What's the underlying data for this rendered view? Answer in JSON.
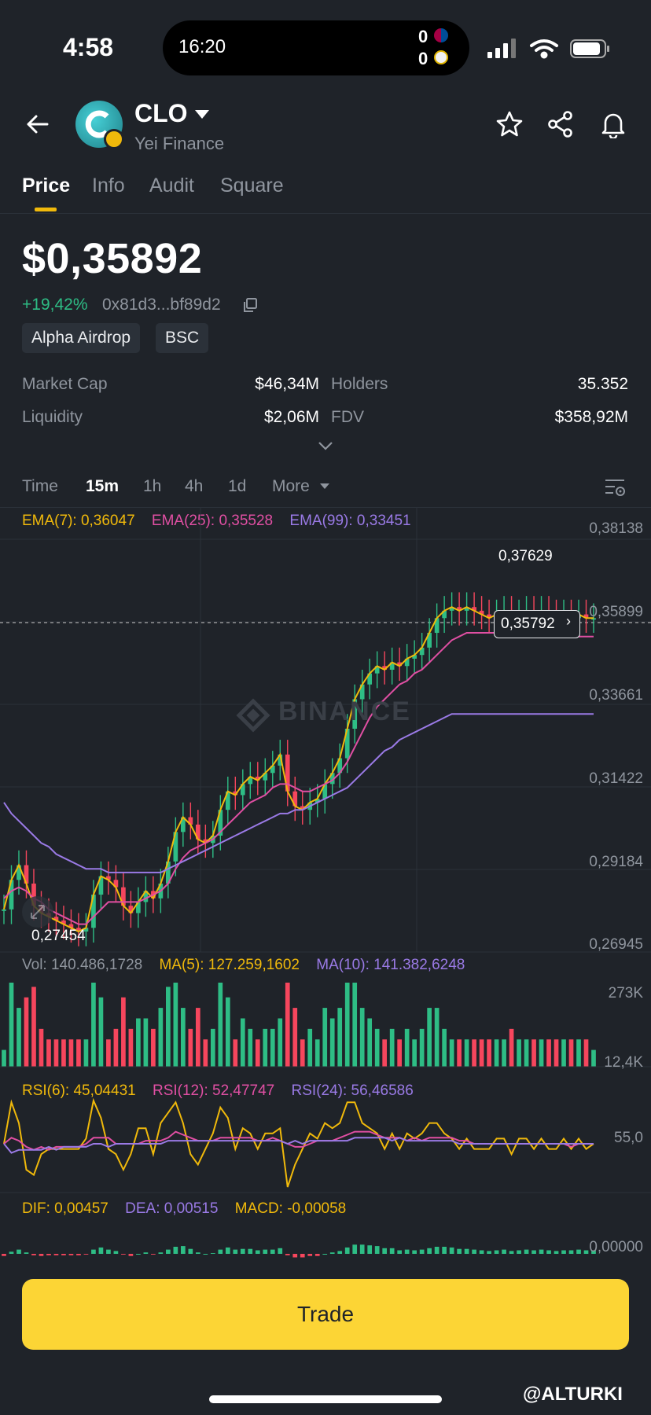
{
  "status_bar": {
    "time": "4:58",
    "island_time": "16:20",
    "score_home": "0",
    "score_away": "0"
  },
  "header": {
    "symbol": "CLO",
    "name": "Yei Finance"
  },
  "tabs": [
    "Price",
    "Info",
    "Audit",
    "Square"
  ],
  "price": {
    "value": "$0,35892",
    "change": "+19,42%",
    "address": "0x81d3...bf89d2",
    "tags": [
      "Alpha Airdrop",
      "BSC"
    ]
  },
  "stats": {
    "market_cap_label": "Market Cap",
    "market_cap": "$46,34M",
    "holders_label": "Holders",
    "holders": "35.352",
    "liquidity_label": "Liquidity",
    "liquidity": "$2,06M",
    "fdv_label": "FDV",
    "fdv": "$358,92M"
  },
  "intervals": [
    "Time",
    "15m",
    "1h",
    "4h",
    "1d",
    "More"
  ],
  "indicators": {
    "ema7": "EMA(7): 0,36047",
    "ema25": "EMA(25): 0,35528",
    "ema99": "EMA(99): 0,33451",
    "vol": "Vol: 140.486,1728",
    "ma5": "MA(5): 127.259,1602",
    "ma10": "MA(10): 141.382,6248",
    "rsi6": "RSI(6): 45,04431",
    "rsi12": "RSI(12): 52,47747",
    "rsi24": "RSI(24): 56,46586",
    "dif": "DIF: 0,00457",
    "dea": "DEA: 0,00515",
    "macd": "MACD: -0,00058"
  },
  "price_axis": [
    "0,38138",
    "0,35899",
    "0,33661",
    "0,31422",
    "0,29184",
    "0,26945"
  ],
  "volume_axis": [
    "273K",
    "12,4K"
  ],
  "rsi_axis": "55,0",
  "macd_axis": "0,00000",
  "chart_labels": {
    "high": "0,37629",
    "low": "0,27454",
    "current": "0,35792",
    "watermark": "BINANCE"
  },
  "chart_data": {
    "type": "line",
    "x": [
      0,
      1,
      2,
      3,
      4,
      5,
      6,
      7,
      8,
      9,
      10,
      11,
      12,
      13,
      14,
      15,
      16,
      17,
      18,
      19,
      20,
      21,
      22,
      23,
      24,
      25,
      26,
      27,
      28,
      29,
      30,
      31,
      32,
      33,
      34,
      35,
      36,
      37,
      38,
      39,
      40,
      41,
      42,
      43,
      44,
      45,
      46,
      47,
      48,
      49,
      50,
      51,
      52,
      53,
      54,
      55,
      56,
      57,
      58,
      59,
      60,
      61,
      62,
      63,
      64,
      65,
      66,
      67,
      68,
      69,
      70,
      71,
      72,
      73,
      74,
      75,
      76,
      77,
      78,
      79
    ],
    "series": [
      {
        "values": [
          0.281,
          0.289,
          0.293,
          0.288,
          0.282,
          0.28,
          0.279,
          0.278,
          0.277,
          0.276,
          0.275,
          0.276,
          0.285,
          0.29,
          0.289,
          0.287,
          0.282,
          0.28,
          0.283,
          0.286,
          0.284,
          0.288,
          0.294,
          0.302,
          0.306,
          0.304,
          0.3,
          0.299,
          0.301,
          0.308,
          0.313,
          0.312,
          0.315,
          0.317,
          0.316,
          0.318,
          0.32,
          0.323,
          0.313,
          0.309,
          0.308,
          0.31,
          0.311,
          0.315,
          0.318,
          0.322,
          0.33,
          0.338,
          0.342,
          0.345,
          0.347,
          0.346,
          0.348,
          0.347,
          0.349,
          0.35,
          0.352,
          0.356,
          0.36,
          0.362,
          0.363,
          0.362,
          0.363,
          0.362,
          0.361,
          0.36,
          0.361,
          0.362,
          0.36,
          0.361,
          0.362,
          0.361,
          0.362,
          0.361,
          0.36,
          0.361,
          0.36,
          0.361,
          0.36,
          0.36
        ]
      },
      {
        "values": [
          0.284,
          0.286,
          0.287,
          0.286,
          0.284,
          0.283,
          0.281,
          0.28,
          0.279,
          0.278,
          0.277,
          0.277,
          0.279,
          0.281,
          0.283,
          0.283,
          0.283,
          0.283,
          0.283,
          0.284,
          0.285,
          0.286,
          0.288,
          0.292,
          0.295,
          0.297,
          0.298,
          0.299,
          0.3,
          0.302,
          0.304,
          0.306,
          0.308,
          0.31,
          0.311,
          0.312,
          0.314,
          0.315,
          0.315,
          0.314,
          0.313,
          0.313,
          0.314,
          0.315,
          0.316,
          0.318,
          0.321,
          0.325,
          0.329,
          0.333,
          0.336,
          0.338,
          0.34,
          0.342,
          0.343,
          0.345,
          0.346,
          0.348,
          0.35,
          0.352,
          0.354,
          0.355,
          0.356,
          0.356,
          0.356,
          0.356,
          0.356,
          0.356,
          0.356,
          0.356,
          0.356,
          0.356,
          0.356,
          0.356,
          0.356,
          0.356,
          0.355,
          0.355,
          0.355,
          0.355
        ]
      },
      {
        "values": [
          0.31,
          0.307,
          0.305,
          0.303,
          0.301,
          0.299,
          0.298,
          0.296,
          0.295,
          0.294,
          0.293,
          0.292,
          0.292,
          0.292,
          0.291,
          0.291,
          0.291,
          0.291,
          0.291,
          0.291,
          0.291,
          0.291,
          0.292,
          0.293,
          0.294,
          0.295,
          0.296,
          0.297,
          0.298,
          0.299,
          0.3,
          0.301,
          0.302,
          0.303,
          0.304,
          0.305,
          0.306,
          0.307,
          0.307,
          0.308,
          0.308,
          0.309,
          0.31,
          0.311,
          0.312,
          0.313,
          0.314,
          0.316,
          0.318,
          0.32,
          0.322,
          0.324,
          0.325,
          0.327,
          0.328,
          0.329,
          0.33,
          0.331,
          0.332,
          0.333,
          0.334,
          0.334,
          0.334,
          0.334,
          0.334,
          0.334,
          0.334,
          0.334,
          0.334,
          0.334,
          0.334,
          0.334,
          0.334,
          0.334,
          0.334,
          0.334,
          0.334,
          0.334,
          0.334,
          0.334
        ]
      }
    ],
    "ylim": [
      0.26945,
      0.38138
    ]
  },
  "trade_label": "Trade",
  "handle": "@ALTURKI"
}
